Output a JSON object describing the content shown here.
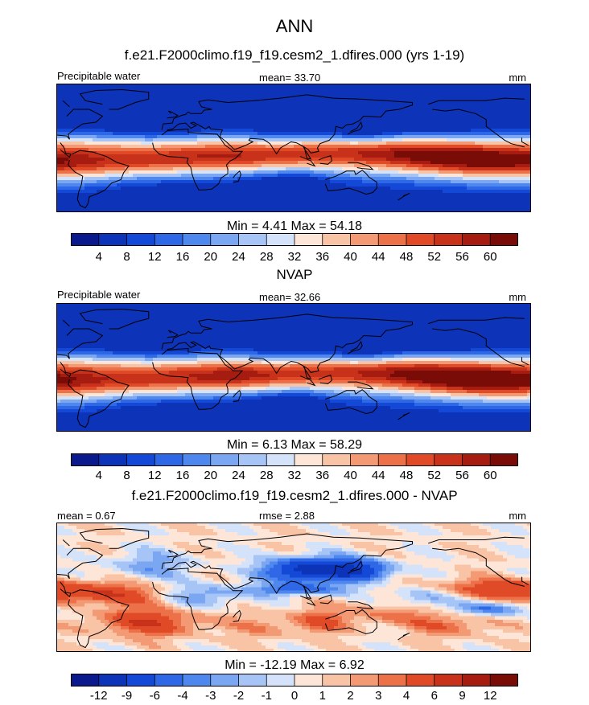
{
  "figure": {
    "season": "ANN",
    "case_title": "f.e21.F2000climo.f19_f19.cesm2_1.dfires.000 (yrs 1-19)",
    "obs_title": "NVAP",
    "diff_title": "f.e21.F2000climo.f19_f19.cesm2_1.dfires.000 - NVAP"
  },
  "colors": {
    "abs_levels": [
      "#0a1a8c",
      "#0d33b8",
      "#1448d6",
      "#2e68e6",
      "#4e88ee",
      "#7aa6f2",
      "#a7c4f6",
      "#d4e2fa",
      "#fde6d8",
      "#f9c3a6",
      "#f39a74",
      "#ec7048",
      "#e14a26",
      "#c8321a",
      "#a61c10",
      "#7a0c08"
    ],
    "diff_levels": [
      "#0a1a8c",
      "#0d33b8",
      "#1448d6",
      "#2e68e6",
      "#4e88ee",
      "#7aa6f2",
      "#a7c4f6",
      "#d4e2fa",
      "#fde6d8",
      "#f9c3a6",
      "#f39a74",
      "#ec7048",
      "#e14a26",
      "#c8321a",
      "#a61c10",
      "#7a0c08"
    ],
    "land": "#000000"
  },
  "chart_data": [
    {
      "type": "heatmap",
      "name": "model",
      "left_label": "Precipitable water",
      "stat_label": "mean=  33.70",
      "units": "mm",
      "range_label": "Min =   4.41 Max =  54.18",
      "min": 4.41,
      "max": 54.18,
      "mean": 33.7,
      "colorbar_ticks": [
        "4",
        "8",
        "12",
        "16",
        "20",
        "24",
        "28",
        "32",
        "36",
        "40",
        "44",
        "48",
        "52",
        "56",
        "60"
      ]
    },
    {
      "type": "heatmap",
      "name": "obs",
      "left_label": "Precipitable water",
      "stat_label": "mean=  32.66",
      "units": "mm",
      "range_label": "Min =   6.13 Max =  58.29",
      "min": 6.13,
      "max": 58.29,
      "mean": 32.66,
      "colorbar_ticks": [
        "4",
        "8",
        "12",
        "16",
        "20",
        "24",
        "28",
        "32",
        "36",
        "40",
        "44",
        "48",
        "52",
        "56",
        "60"
      ]
    },
    {
      "type": "heatmap",
      "name": "diff",
      "left_label": "mean =   0.67",
      "stat_label": "rmse =   2.88",
      "units": "mm",
      "range_label": "Min = -12.19 Max =   6.92",
      "min": -12.19,
      "max": 6.92,
      "mean": 0.67,
      "rmse": 2.88,
      "colorbar_ticks": [
        "-12",
        "-9",
        "-6",
        "-4",
        "-3",
        "-2",
        "-1",
        "0",
        "1",
        "2",
        "3",
        "4",
        "6",
        "9",
        "12"
      ]
    }
  ]
}
